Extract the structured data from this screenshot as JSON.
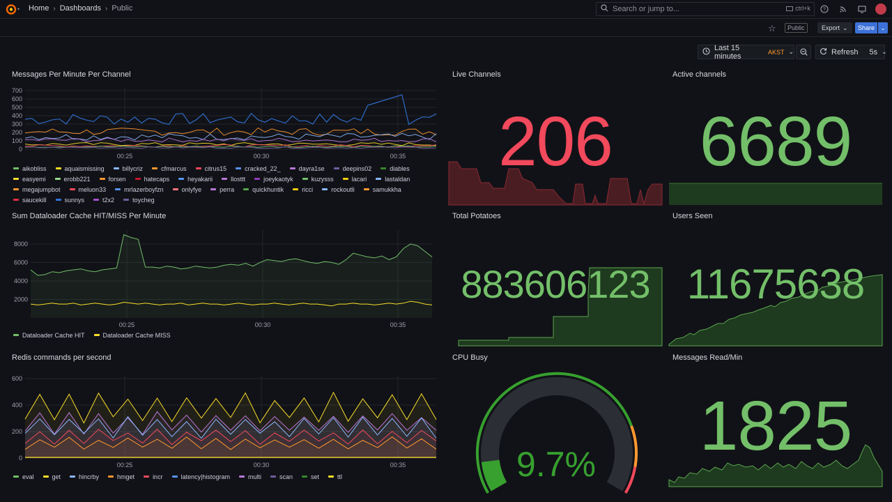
{
  "topbar": {
    "breadcrumb": [
      "Home",
      "Dashboards",
      "Public"
    ],
    "search_placeholder": "Search or jump to...",
    "search_shortcut": "ctrl+k"
  },
  "toolbar": {
    "public_tag": "Public",
    "export_label": "Export",
    "share_label": "Share"
  },
  "timepicker": {
    "range": "Last 15 minutes",
    "timezone": "AKST",
    "refresh_label": "Refresh",
    "refresh_interval": "5s"
  },
  "colors": {
    "green": "#73bf69",
    "red": "#f2495c",
    "yellow": "#fade2a",
    "orange": "#ff9830",
    "blue": "#5794f2",
    "purple": "#b877d9"
  },
  "panels": {
    "messages": {
      "title": "Messages Per Minute Per Channel",
      "yticks": [
        "700",
        "600",
        "500",
        "400",
        "300",
        "200",
        "100",
        "0"
      ],
      "xticks": [
        "00:25",
        "00:30",
        "00:35"
      ],
      "legend": [
        {
          "name": "aikobliss",
          "color": "#73bf69"
        },
        {
          "name": "aquaismissing",
          "color": "#fade2a"
        },
        {
          "name": "billycriz",
          "color": "#8ab8ff"
        },
        {
          "name": "cfmarcus",
          "color": "#ff9830"
        },
        {
          "name": "citrus15",
          "color": "#f2495c"
        },
        {
          "name": "cracked_22_",
          "color": "#5794f2"
        },
        {
          "name": "dayra1se",
          "color": "#b877d9"
        },
        {
          "name": "deepins02",
          "color": "#705da0"
        },
        {
          "name": "diables",
          "color": "#37872d"
        },
        {
          "name": "easyemi",
          "color": "#fade2a"
        },
        {
          "name": "erobb221",
          "color": "#96d98d"
        },
        {
          "name": "forsen",
          "color": "#ff9830"
        },
        {
          "name": "hatecaps",
          "color": "#c4162a"
        },
        {
          "name": "heyakarii",
          "color": "#5794f2"
        },
        {
          "name": "llosttt",
          "color": "#b877d9"
        },
        {
          "name": "joeykaotyk",
          "color": "#8f3bb8"
        },
        {
          "name": "kuzysss",
          "color": "#73bf69"
        },
        {
          "name": "lacari",
          "color": "#f2cc0c"
        },
        {
          "name": "lastaldan",
          "color": "#8ab8ff"
        },
        {
          "name": "megajumpbot",
          "color": "#ff9830"
        },
        {
          "name": "meluon33",
          "color": "#f2495c"
        },
        {
          "name": "mrlazerboyfzn",
          "color": "#5794f2"
        },
        {
          "name": "onlyfye",
          "color": "#ff7383"
        },
        {
          "name": "perra",
          "color": "#b877d9"
        },
        {
          "name": "quickhuntik",
          "color": "#56a64b"
        },
        {
          "name": "ricci",
          "color": "#f2cc0c"
        },
        {
          "name": "rockoutli",
          "color": "#8ab8ff"
        },
        {
          "name": "samukkha",
          "color": "#ff9830"
        },
        {
          "name": "saucekill",
          "color": "#e02f44"
        },
        {
          "name": "sunnys",
          "color": "#3274d9"
        },
        {
          "name": "t2x2",
          "color": "#a352cc"
        },
        {
          "name": "toycheg",
          "color": "#705da0"
        }
      ]
    },
    "live": {
      "title": "Live Channels",
      "value": "206"
    },
    "active": {
      "title": "Active channels",
      "value": "6689"
    },
    "cache": {
      "title": "Sum Dataloader Cache HIT/MISS Per Minute",
      "yticks": [
        "8000",
        "6000",
        "4000",
        "2000"
      ],
      "xticks": [
        "00:25",
        "00:30",
        "00:35"
      ],
      "legend": [
        {
          "name": "Dataloader Cache HIT",
          "color": "#73bf69"
        },
        {
          "name": "Dataloader Cache MISS",
          "color": "#fade2a"
        }
      ]
    },
    "potatoes": {
      "title": "Total Potatoes",
      "value": "883606123"
    },
    "users": {
      "title": "Users Seen",
      "value": "11675638"
    },
    "redis": {
      "title": "Redis commands per second",
      "yticks": [
        "600",
        "400",
        "200",
        "0"
      ],
      "xticks": [
        "00:25",
        "00:30",
        "00:35"
      ],
      "legend": [
        {
          "name": "eval",
          "color": "#73bf69"
        },
        {
          "name": "get",
          "color": "#fade2a"
        },
        {
          "name": "hincrby",
          "color": "#8ab8ff"
        },
        {
          "name": "hmget",
          "color": "#ff9830"
        },
        {
          "name": "incr",
          "color": "#f2495c"
        },
        {
          "name": "latency|histogram",
          "color": "#5794f2"
        },
        {
          "name": "multi",
          "color": "#b877d9"
        },
        {
          "name": "scan",
          "color": "#705da0"
        },
        {
          "name": "set",
          "color": "#37872d"
        },
        {
          "name": "ttl",
          "color": "#fade2a"
        }
      ]
    },
    "cpu": {
      "title": "CPU Busy",
      "value": "9.7%",
      "percent": 9.7
    },
    "msgread": {
      "title": "Messages Read/Min",
      "value": "1825"
    }
  }
}
